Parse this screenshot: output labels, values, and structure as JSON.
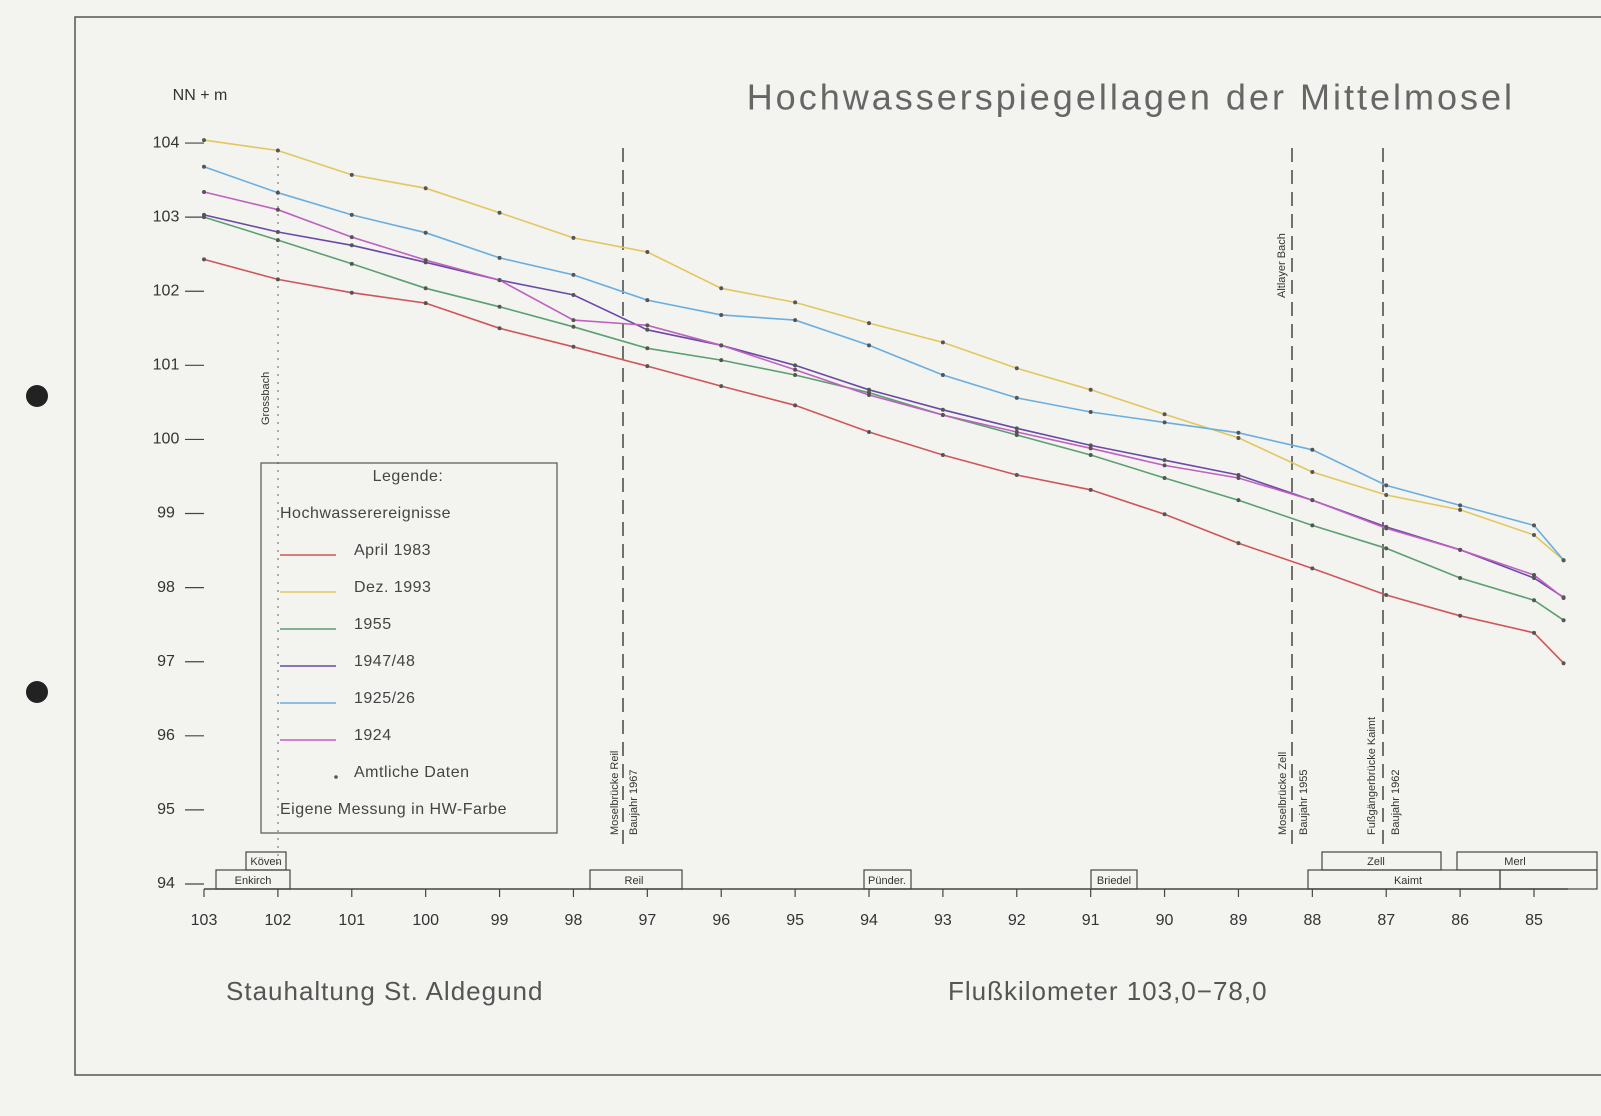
{
  "chart_data": {
    "type": "line",
    "title": "Hochwasserspiegellagen der Mittelmosel",
    "y_label": "NN + m",
    "footer_left": "Stauhaltung St. Aldegund",
    "footer_right": "Flußkilometer 103,0−78,0",
    "x": [
      103,
      102,
      101,
      100,
      99,
      98,
      97,
      96,
      95,
      94,
      93,
      92,
      91,
      90,
      89,
      88,
      87,
      86,
      85,
      84.6
    ],
    "xlim": [
      103,
      84.54
    ],
    "xticks": [
      103,
      102,
      101,
      100,
      99,
      98,
      97,
      96,
      95,
      94,
      93,
      92,
      91,
      90,
      89,
      88,
      87,
      86,
      85
    ],
    "ylim": [
      94,
      104.5
    ],
    "yticks": [
      94,
      95,
      96,
      97,
      98,
      99,
      100,
      101,
      102,
      103,
      104
    ],
    "series": [
      {
        "name": "April 1983",
        "color": "#d0555a",
        "values": [
          102.43,
          102.16,
          101.98,
          101.84,
          101.5,
          101.25,
          100.99,
          100.72,
          100.46,
          100.1,
          99.79,
          99.52,
          99.32,
          98.99,
          98.6,
          98.26,
          97.9,
          97.62,
          97.39,
          96.98
        ]
      },
      {
        "name": "Dez. 1993",
        "color": "#e3c75e",
        "values": [
          104.04,
          103.9,
          103.57,
          103.39,
          103.06,
          102.72,
          102.53,
          102.04,
          101.85,
          101.57,
          101.31,
          100.96,
          100.67,
          100.34,
          100.02,
          99.56,
          99.25,
          99.05,
          98.71,
          98.37
        ]
      },
      {
        "name": "1955",
        "color": "#5aa070",
        "values": [
          103.0,
          102.69,
          102.37,
          102.04,
          101.79,
          101.52,
          101.23,
          101.07,
          100.87,
          100.63,
          100.33,
          100.06,
          99.79,
          99.48,
          99.18,
          98.84,
          98.53,
          98.13,
          97.83,
          97.56
        ]
      },
      {
        "name": "1947/48",
        "color": "#6a4aa8",
        "values": [
          103.03,
          102.8,
          102.62,
          102.39,
          102.15,
          101.95,
          101.48,
          101.27,
          101.0,
          100.67,
          100.4,
          100.15,
          99.92,
          99.72,
          99.52,
          99.18,
          98.82,
          98.51,
          98.13,
          97.87
        ]
      },
      {
        "name": "1925/26",
        "color": "#6aaee0",
        "values": [
          103.68,
          103.33,
          103.03,
          102.79,
          102.45,
          102.22,
          101.88,
          101.68,
          101.61,
          101.27,
          100.87,
          100.56,
          100.37,
          100.23,
          100.09,
          99.86,
          99.38,
          99.11,
          98.84,
          98.37
        ]
      },
      {
        "name": "1924",
        "color": "#c060c0",
        "values": [
          103.34,
          103.1,
          102.73,
          102.42,
          102.15,
          101.61,
          101.54,
          101.27,
          100.94,
          100.6,
          100.33,
          100.1,
          99.88,
          99.65,
          99.48,
          99.18,
          98.8,
          98.51,
          98.17,
          97.86
        ]
      }
    ],
    "legend": {
      "title": "Legende:",
      "subtitle": "Hochwasserereignisse",
      "official": "Amtliche Daten",
      "own": "Eigene Messung in HW-Farbe"
    },
    "markers": {
      "grossbach": "Grossbach",
      "altlayer": "Altlayer Bach",
      "reil": "Moselbrücke Reil",
      "reil_year": "Baujahr 1967",
      "zell": "Moselbrücke Zell",
      "zell_year": "Baujahr 1955",
      "kaimt": "Fußgängerbrücke Kaimt",
      "kaimt_year": "Baujahr 1962"
    },
    "places": [
      "Köven",
      "Enkirch",
      "Reil",
      "Pünder.",
      "Briedel",
      "Zell",
      "Kaimt",
      "Merl"
    ]
  }
}
